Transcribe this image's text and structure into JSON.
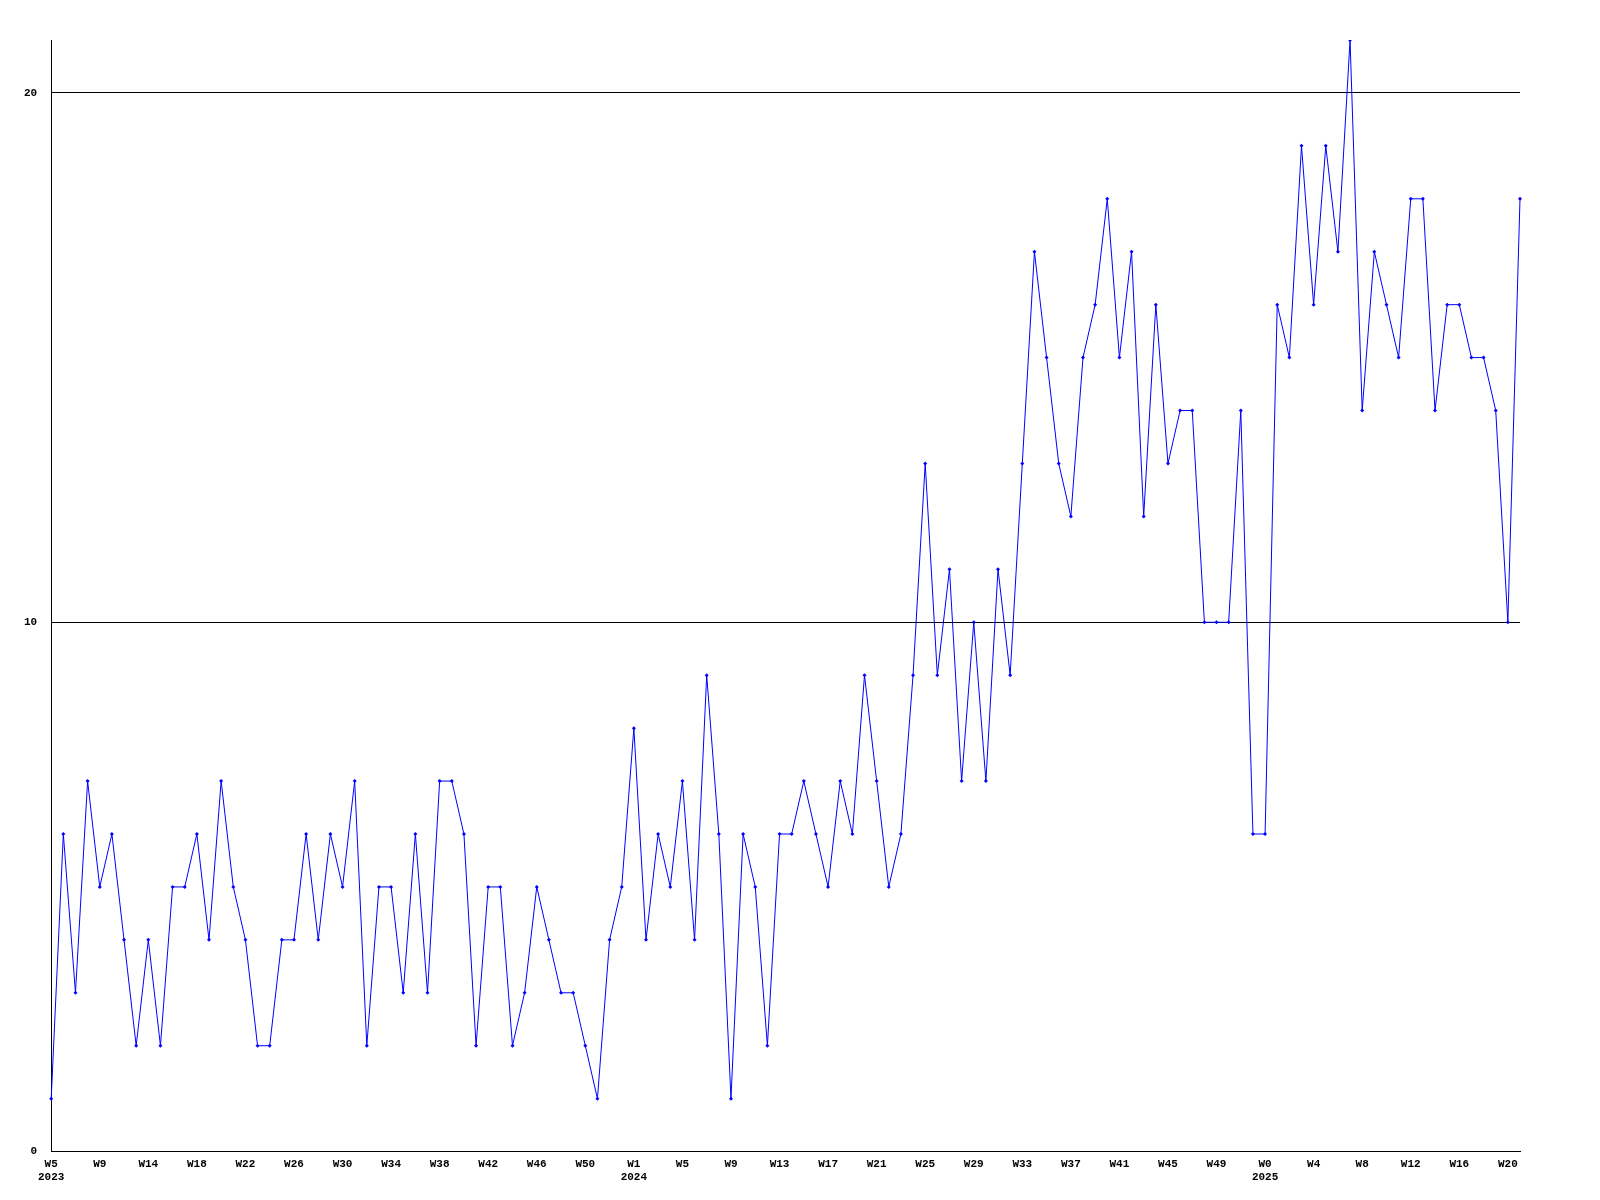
{
  "chart_data": {
    "type": "line",
    "categories": [
      "W5\n2023",
      null,
      null,
      null,
      "W9",
      null,
      null,
      null,
      "W14",
      null,
      null,
      null,
      "W18",
      null,
      null,
      null,
      "W22",
      null,
      null,
      null,
      "W26",
      null,
      null,
      null,
      "W30",
      null,
      null,
      null,
      "W34",
      null,
      null,
      null,
      "W38",
      null,
      null,
      null,
      "W42",
      null,
      null,
      null,
      "W46",
      null,
      null,
      null,
      "W50",
      null,
      null,
      null,
      "W1\n2024",
      null,
      null,
      null,
      "W5",
      null,
      null,
      null,
      "W9",
      null,
      null,
      null,
      "W13",
      null,
      null,
      null,
      "W17",
      null,
      null,
      null,
      "W21",
      null,
      null,
      null,
      "W25",
      null,
      null,
      null,
      "W29",
      null,
      null,
      null,
      "W33",
      null,
      null,
      null,
      "W37",
      null,
      null,
      null,
      "W41",
      null,
      null,
      null,
      "W45",
      null,
      null,
      null,
      "W49",
      null,
      null,
      null,
      "W0\n2025",
      null,
      null,
      null,
      "W4",
      null,
      null,
      null,
      "W8",
      null,
      null,
      null,
      "W12",
      null,
      null,
      null,
      "W16",
      null,
      null,
      null,
      "W20",
      null
    ],
    "series": [
      {
        "color": "#0000ff",
        "values": [
          1,
          6,
          3,
          7,
          5,
          6,
          4,
          2,
          4,
          2,
          5,
          5,
          6,
          4,
          7,
          5,
          4,
          2,
          2,
          4,
          4,
          6,
          4,
          6,
          5,
          7,
          2,
          5,
          5,
          3,
          6,
          3,
          7,
          7,
          6,
          2,
          5,
          5,
          2,
          3,
          5,
          4,
          3,
          3,
          2,
          1,
          4,
          5,
          8,
          4,
          6,
          5,
          7,
          4,
          9,
          6,
          1,
          6,
          5,
          2,
          6,
          6,
          7,
          6,
          5,
          7,
          6,
          9,
          7,
          5,
          6,
          9,
          13,
          9,
          11,
          7,
          10,
          7,
          11,
          9,
          13,
          17,
          15,
          13,
          12,
          15,
          16,
          18,
          15,
          17,
          12,
          16,
          13,
          14,
          14,
          10,
          10,
          10,
          14,
          6,
          6,
          16,
          15,
          19,
          16,
          19,
          17,
          21,
          14,
          17,
          16,
          15,
          18,
          18,
          14,
          16,
          16,
          15,
          15,
          14,
          10,
          18
        ]
      }
    ],
    "ylim": [
      0,
      21
    ],
    "yticks": [
      0,
      10,
      20
    ],
    "grid": "y",
    "legend": false,
    "marker": "diamond",
    "line_style": "solid"
  }
}
